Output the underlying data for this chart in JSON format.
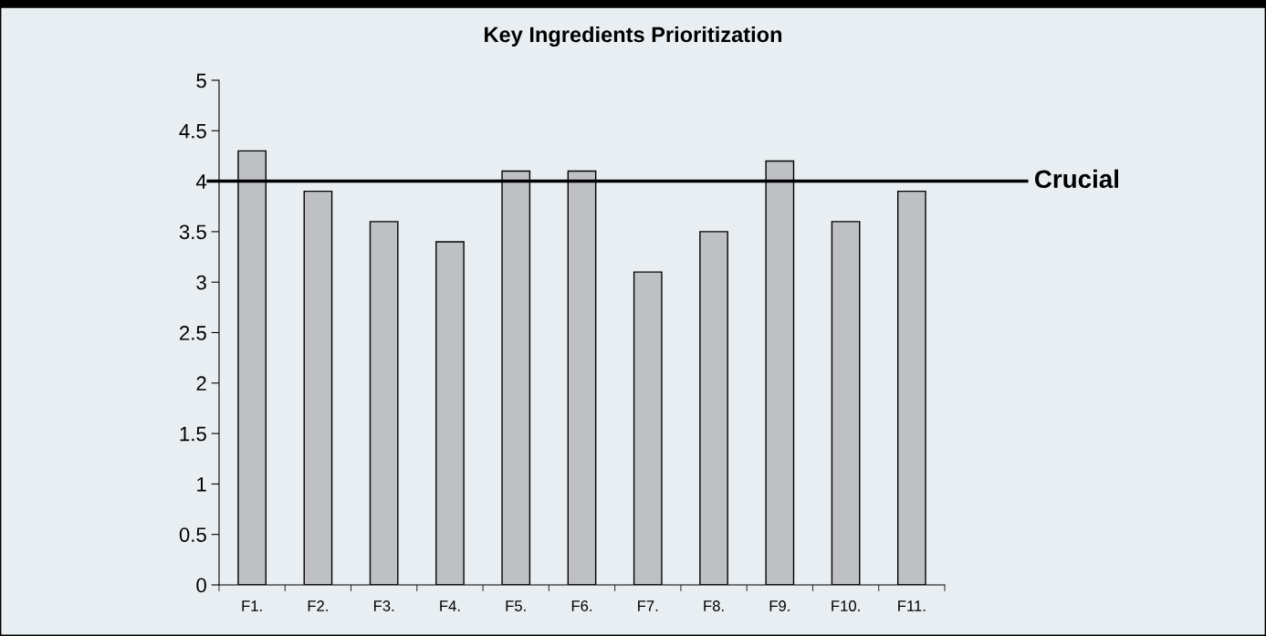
{
  "chart_data": {
    "type": "bar",
    "title": "Key Ingredients Prioritization",
    "categories": [
      "F1.",
      "F2.",
      "F3.",
      "F4.",
      "F5.",
      "F6.",
      "F7.",
      "F8.",
      "F9.",
      "F10.",
      "F11."
    ],
    "values": [
      4.3,
      3.9,
      3.6,
      3.4,
      4.1,
      4.1,
      3.1,
      3.5,
      4.2,
      3.6,
      3.9
    ],
    "color": "#bfc0c4",
    "ylim": [
      0,
      5
    ],
    "yticks": [
      0,
      0.5,
      1,
      1.5,
      2,
      2.5,
      3,
      3.5,
      4,
      4.5,
      5
    ],
    "ref_lines": [
      {
        "axis": "y",
        "value": 4,
        "label": "Crucial",
        "color": "#000000"
      }
    ],
    "grid": false
  }
}
